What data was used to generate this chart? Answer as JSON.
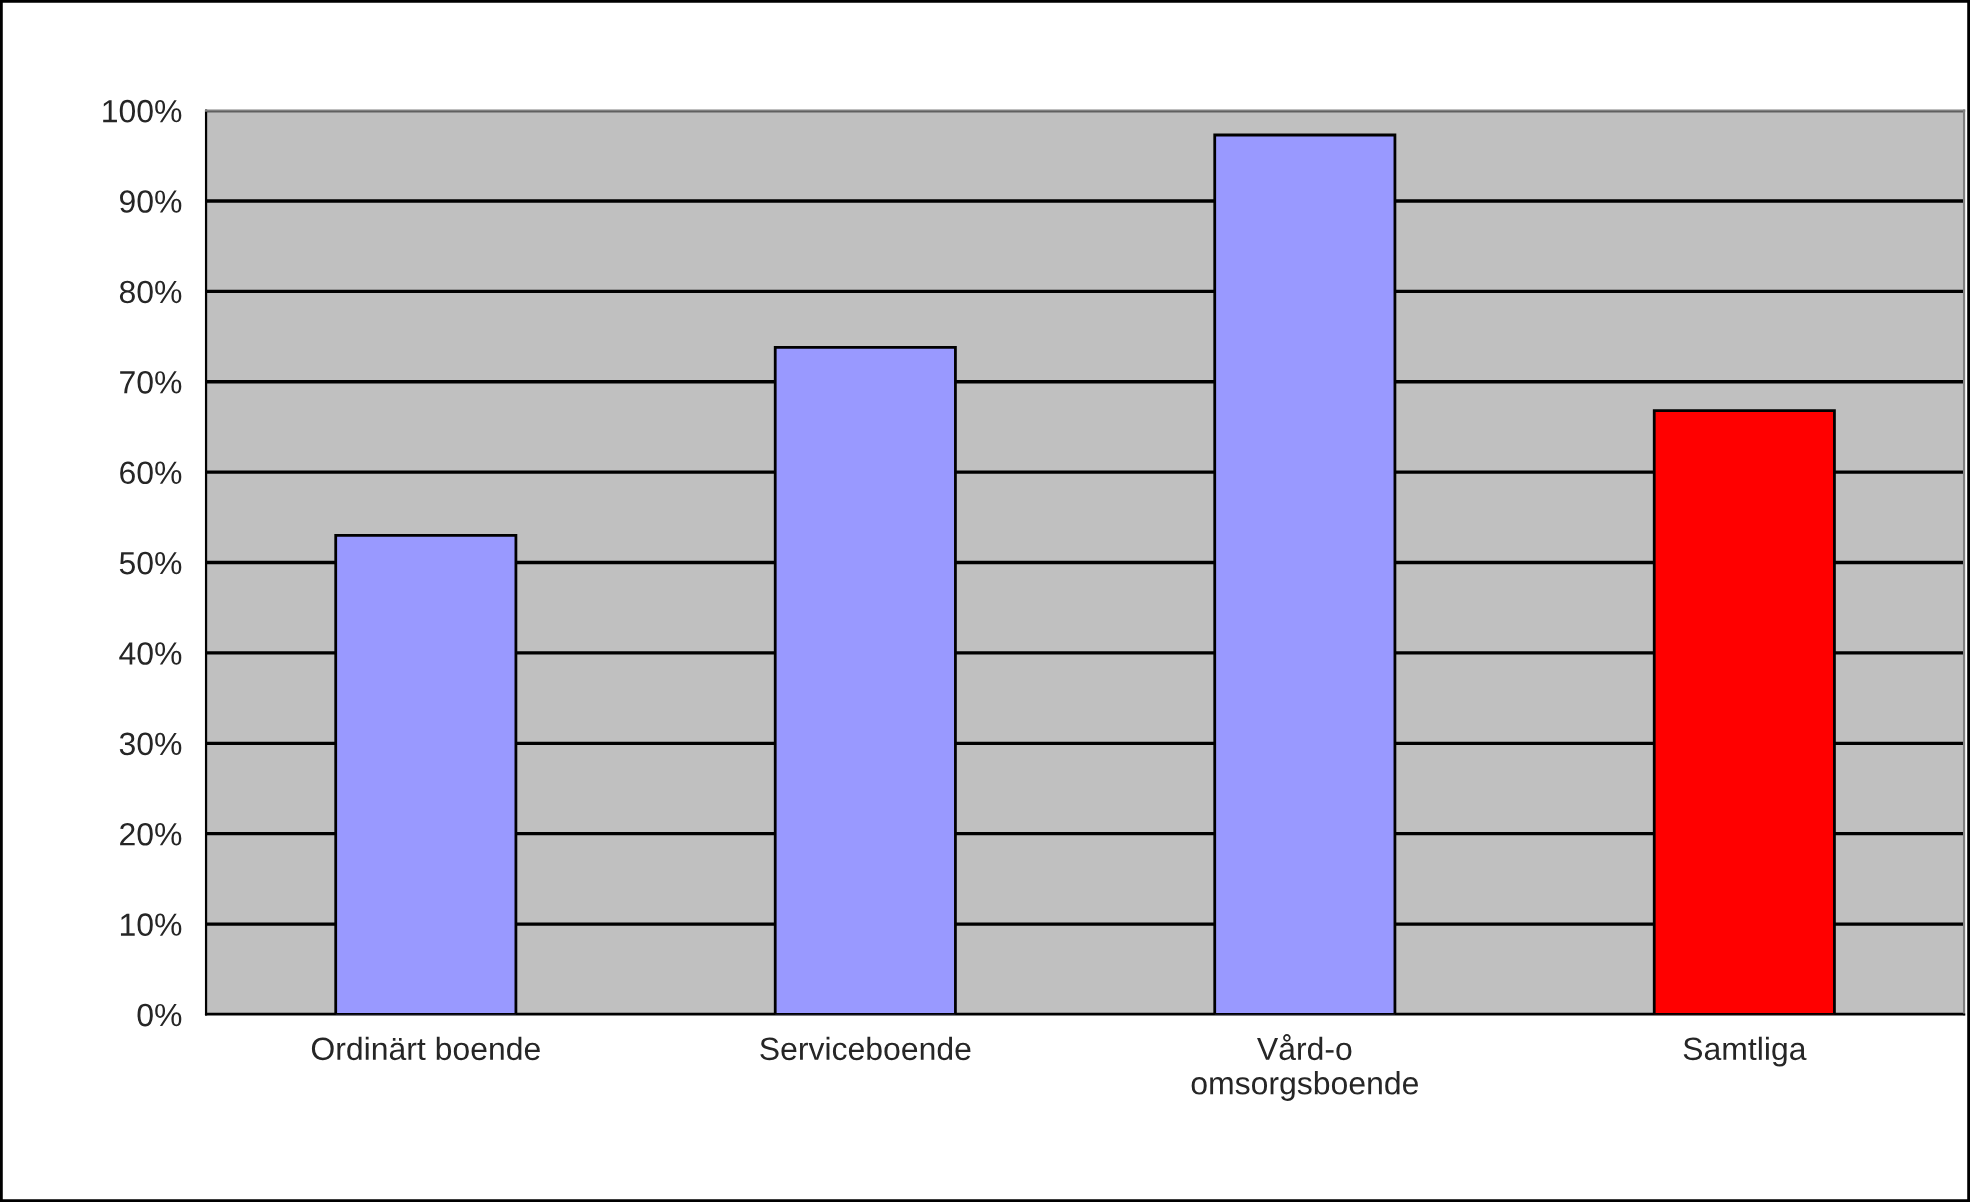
{
  "chart_data": {
    "type": "bar",
    "categories": [
      "Ordinärt boende",
      "Serviceboende",
      "Vård-o\nomsorgsboende",
      "Samtliga"
    ],
    "values": [
      53,
      73.8,
      97.3,
      66.8
    ],
    "colors": [
      "#9999ff",
      "#9999ff",
      "#9999ff",
      "#ff0000"
    ],
    "ylim": [
      0,
      100
    ],
    "yticks": [
      {
        "value": 0,
        "label": "0%"
      },
      {
        "value": 10,
        "label": "10%"
      },
      {
        "value": 20,
        "label": "20%"
      },
      {
        "value": 30,
        "label": "30%"
      },
      {
        "value": 40,
        "label": "40%"
      },
      {
        "value": 50,
        "label": "50%"
      },
      {
        "value": 60,
        "label": "60%"
      },
      {
        "value": 70,
        "label": "70%"
      },
      {
        "value": 80,
        "label": "80%"
      },
      {
        "value": 90,
        "label": "90%"
      },
      {
        "value": 100,
        "label": "100%"
      }
    ],
    "grid": "y",
    "legend": false
  }
}
